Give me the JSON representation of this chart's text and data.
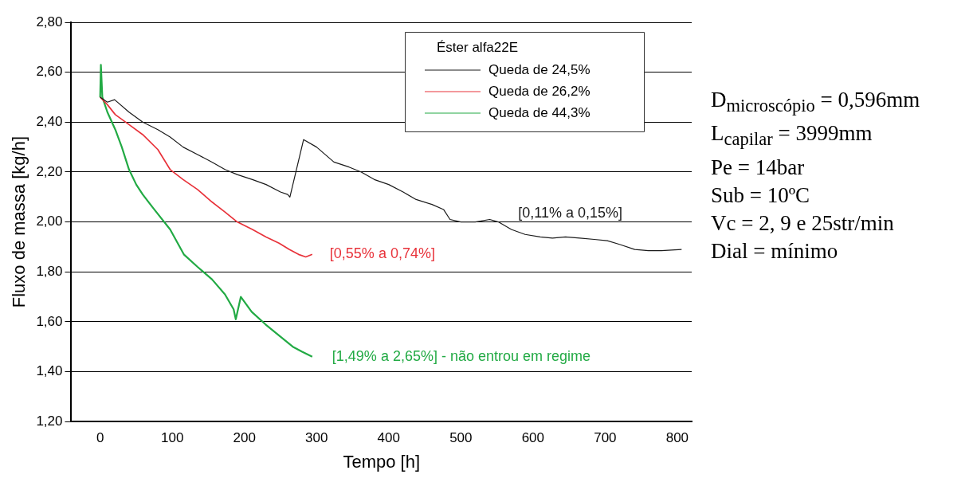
{
  "chart_data": {
    "type": "line",
    "xlabel": "Tempo [h]",
    "ylabel": "Fluxo de massa [kg/h]",
    "legend_title": "Éster alfa22E",
    "legend": "top right",
    "grid": "y",
    "marker": "none",
    "line_style": "solid",
    "xlim": [
      -40,
      820
    ],
    "xticks": [
      0,
      100,
      200,
      300,
      400,
      500,
      600,
      700,
      800
    ],
    "ylim": [
      1.2,
      2.8
    ],
    "yticks": [
      {
        "value": 1.2,
        "label": "1,20"
      },
      {
        "value": 1.4,
        "label": "1,40"
      },
      {
        "value": 1.6,
        "label": "1,60"
      },
      {
        "value": 1.8,
        "label": "1,80"
      },
      {
        "value": 2.0,
        "label": "2,00"
      },
      {
        "value": 2.2,
        "label": "2,20"
      },
      {
        "value": 2.4,
        "label": "2,40"
      },
      {
        "value": 2.6,
        "label": "2,60"
      },
      {
        "value": 2.8,
        "label": "2,80"
      }
    ],
    "series": [
      {
        "name": "Queda de 24,5%",
        "color": "#1a1a1a",
        "x": [
          0,
          10,
          20,
          40,
          59,
          80,
          97,
          115,
          135,
          155,
          173,
          190,
          211,
          230,
          250,
          260,
          263,
          282,
          300,
          324,
          345,
          362,
          380,
          400,
          420,
          438,
          460,
          476,
          485,
          500,
          520,
          540,
          552,
          570,
          589,
          610,
          627,
          645,
          665,
          685,
          703,
          720,
          741,
          760,
          778,
          806
        ],
        "values": [
          2.5,
          2.48,
          2.49,
          2.44,
          2.4,
          2.37,
          2.34,
          2.3,
          2.27,
          2.24,
          2.21,
          2.19,
          2.17,
          2.15,
          2.12,
          2.11,
          2.1,
          2.33,
          2.3,
          2.24,
          2.22,
          2.2,
          2.17,
          2.15,
          2.12,
          2.09,
          2.07,
          2.05,
          2.01,
          2.0,
          2.0,
          2.01,
          2.0,
          1.97,
          1.95,
          1.94,
          1.935,
          1.94,
          1.935,
          1.93,
          1.925,
          1.91,
          1.89,
          1.885,
          1.885,
          1.89
        ]
      },
      {
        "name": "Queda de 26,2%",
        "color": "#e8323a",
        "x": [
          0,
          10,
          21,
          40,
          59,
          80,
          97,
          115,
          135,
          155,
          173,
          190,
          211,
          230,
          248,
          262,
          275,
          285,
          294
        ],
        "values": [
          2.5,
          2.47,
          2.43,
          2.39,
          2.35,
          2.29,
          2.21,
          2.17,
          2.13,
          2.08,
          2.04,
          2.0,
          1.97,
          1.94,
          1.915,
          1.89,
          1.87,
          1.86,
          1.87
        ]
      },
      {
        "name": "Queda de 44,3%",
        "color": "#22aa44",
        "x": [
          0,
          1,
          3,
          10,
          21,
          30,
          40,
          50,
          59,
          75,
          97,
          116,
          135,
          155,
          173,
          185,
          188,
          195,
          210,
          229,
          250,
          267,
          280,
          294
        ],
        "values": [
          2.5,
          2.63,
          2.5,
          2.44,
          2.37,
          2.3,
          2.21,
          2.15,
          2.11,
          2.05,
          1.97,
          1.87,
          1.82,
          1.77,
          1.71,
          1.65,
          1.61,
          1.7,
          1.64,
          1.59,
          1.54,
          1.5,
          1.48,
          1.46
        ]
      }
    ],
    "annotations": [
      "[0,11% a 0,15%]",
      "[0,55% a 0,74%]",
      "[1,49% a 2,65%] - não entrou em regime",
      "D$_{microscópio}$ = 0,596mm",
      "L$_{capilar}$ = 3999mm",
      "Pe = 14bar",
      "Sub = 10ºC",
      "Vc = 2, 9 e 25str/min",
      "Dial = mínimo"
    ]
  }
}
